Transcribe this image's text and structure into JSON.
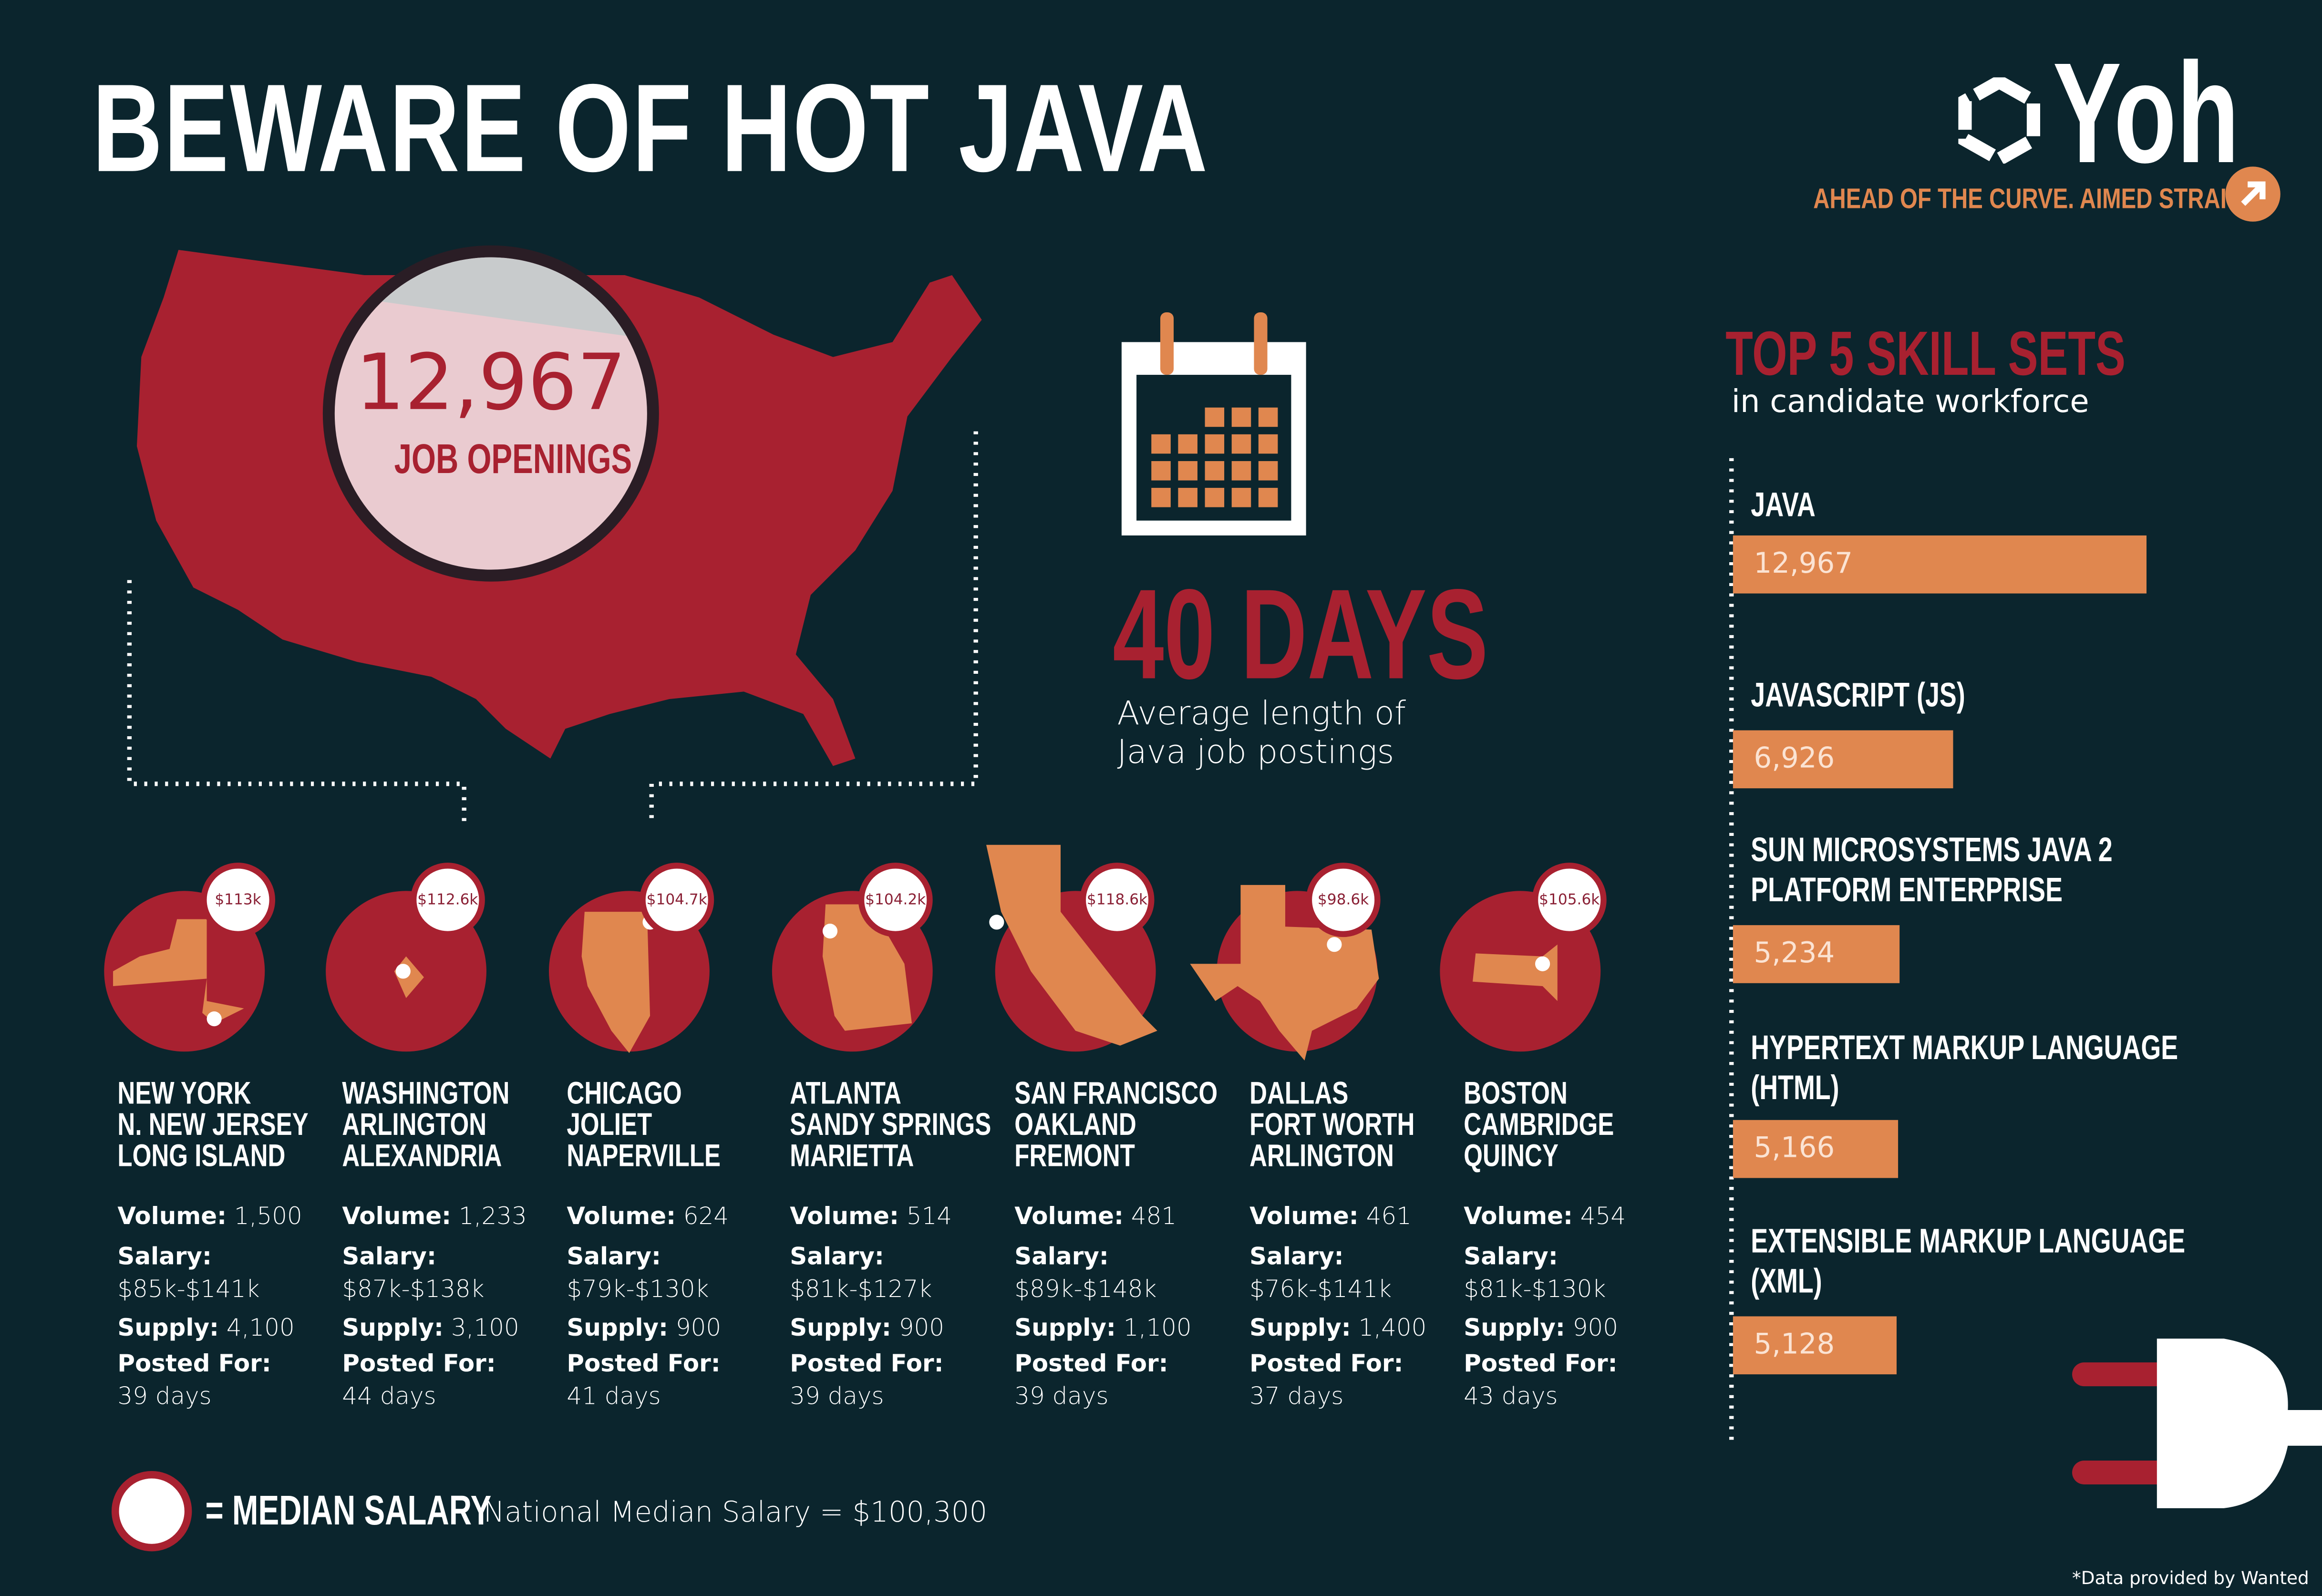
{
  "header": {
    "title": "BEWARE OF HOT JAVA",
    "logo_text": "Yoh",
    "tagline": "AHEAD OF THE CURVE. AIMED STRAIGHT.",
    "tagline_icon": "arrow-up-right-icon"
  },
  "colors": {
    "background": "#0b252d",
    "red": "#a82130",
    "orange": "#e0874f",
    "pink": "#eacbd0",
    "white": "#ffffff"
  },
  "openings": {
    "number": "12,967",
    "label": "JOB OPENINGS"
  },
  "posting": {
    "days": "40 DAYS",
    "description_line1": "Average length of",
    "description_line2": "Java job postings",
    "icon": "calendar-icon"
  },
  "skills": {
    "title": "TOP 5 SKILL SETS",
    "subtitle": "in candidate workforce",
    "items": [
      {
        "label_lines": [
          "JAVA"
        ],
        "value_text": "12,967",
        "value": 12967
      },
      {
        "label_lines": [
          "JAVASCRIPT (JS)"
        ],
        "value_text": "6,926",
        "value": 6926
      },
      {
        "label_lines": [
          "SUN MICROSYSTEMS JAVA 2",
          "PLATFORM ENTERPRISE"
        ],
        "value_text": "5,234",
        "value": 5234
      },
      {
        "label_lines": [
          "HYPERTEXT MARKUP LANGUAGE",
          "(HTML)"
        ],
        "value_text": "5,166",
        "value": 5166
      },
      {
        "label_lines": [
          "EXTENSIBLE MARKUP LANGUAGE",
          "(XML)"
        ],
        "value_text": "5,128",
        "value": 5128
      }
    ]
  },
  "labels": {
    "volume": "Volume:",
    "salary": "Salary:",
    "supply": "Supply:",
    "posted": "Posted For:"
  },
  "cities": [
    {
      "state": "new-york",
      "median": "$113k",
      "names": [
        "NEW YORK",
        "N.  NEW JERSEY",
        "LONG ISLAND"
      ],
      "volume": "1,500",
      "salary": "$85k-$141k",
      "supply": "4,100",
      "posted": "39 days"
    },
    {
      "state": "dc",
      "median": "$112.6k",
      "names": [
        "WASHINGTON",
        "ARLINGTON",
        "ALEXANDRIA"
      ],
      "volume": "1,233",
      "salary": "$87k-$138k",
      "supply": "3,100",
      "posted": "44 days"
    },
    {
      "state": "illinois",
      "median": "$104.7k",
      "names": [
        "CHICAGO",
        "JOLIET",
        "NAPERVILLE"
      ],
      "volume": "624",
      "salary": "$79k-$130k",
      "supply": "900",
      "posted": "41 days"
    },
    {
      "state": "georgia",
      "median": "$104.2k",
      "names": [
        "ATLANTA",
        "SANDY SPRINGS",
        "MARIETTA"
      ],
      "volume": "514",
      "salary": "$81k-$127k",
      "supply": "900",
      "posted": "39 days"
    },
    {
      "state": "california",
      "median": "$118.6k",
      "names": [
        "SAN FRANCISCO",
        "OAKLAND",
        "FREMONT"
      ],
      "volume": "481",
      "salary": "$89k-$148k",
      "supply": "1,100",
      "posted": "39 days"
    },
    {
      "state": "texas",
      "median": "$98.6k",
      "names": [
        "DALLAS",
        "FORT WORTH",
        "ARLINGTON"
      ],
      "volume": "461",
      "salary": "$76k-$141k",
      "supply": "1,400",
      "posted": "37 days"
    },
    {
      "state": "massachusetts",
      "median": "$105.6k",
      "names": [
        "BOSTON",
        "CAMBRIDGE",
        "QUINCY"
      ],
      "volume": "454",
      "salary": "$81k-$130k",
      "supply": "900",
      "posted": "43 days"
    }
  ],
  "legend": {
    "label": "= MEDIAN SALARY",
    "national": "National Median Salary = $100,300"
  },
  "footnote": "*Data provided by Wanted"
}
